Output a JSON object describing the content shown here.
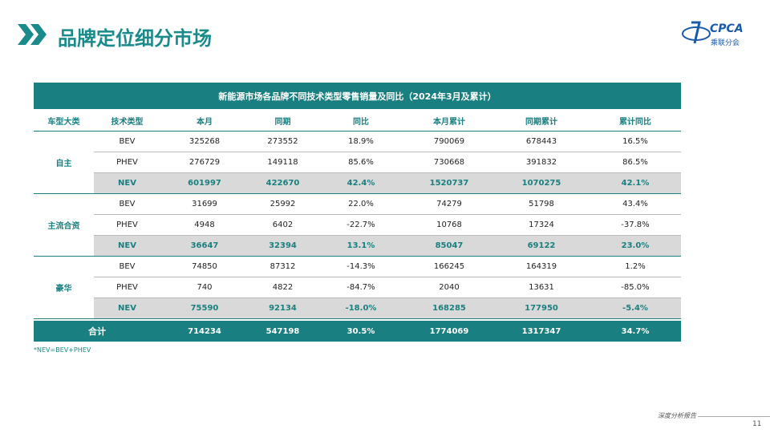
{
  "header": {
    "title": "品牌定位细分市场"
  },
  "logo": {
    "brand": "CPCA",
    "name": "乘联分会"
  },
  "table": {
    "title": "新能源市场各品牌不同技术类型零售销量及同比（2024年3月及累计）",
    "columns": [
      "车型大类",
      "技术类型",
      "本月",
      "同期",
      "同比",
      "本月累计",
      "同期累计",
      "累计同比"
    ],
    "groups": [
      {
        "name": "自主",
        "rows": [
          [
            "BEV",
            "325268",
            "273552",
            "18.9%",
            "790069",
            "678443",
            "16.5%"
          ],
          [
            "PHEV",
            "276729",
            "149118",
            "85.6%",
            "730668",
            "391832",
            "86.5%"
          ],
          [
            "NEV",
            "601997",
            "422670",
            "42.4%",
            "1520737",
            "1070275",
            "42.1%"
          ]
        ]
      },
      {
        "name": "主流合资",
        "rows": [
          [
            "BEV",
            "31699",
            "25992",
            "22.0%",
            "74279",
            "51798",
            "43.4%"
          ],
          [
            "PHEV",
            "4948",
            "6402",
            "-22.7%",
            "10768",
            "17324",
            "-37.8%"
          ],
          [
            "NEV",
            "36647",
            "32394",
            "13.1%",
            "85047",
            "69122",
            "23.0%"
          ]
        ]
      },
      {
        "name": "豪华",
        "rows": [
          [
            "BEV",
            "74850",
            "87312",
            "-14.3%",
            "166245",
            "164319",
            "1.2%"
          ],
          [
            "PHEV",
            "740",
            "4822",
            "-84.7%",
            "2040",
            "13631",
            "-85.0%"
          ],
          [
            "NEV",
            "75590",
            "92134",
            "-18.0%",
            "168285",
            "177950",
            "-5.4%"
          ]
        ]
      }
    ],
    "total": {
      "label": "合计",
      "values": [
        "714234",
        "547198",
        "30.5%",
        "1774069",
        "1317347",
        "34.7%"
      ]
    }
  },
  "footnote": "*NEV=BEV+PHEV",
  "footer": {
    "text": "深度分析报告",
    "page": "11"
  }
}
